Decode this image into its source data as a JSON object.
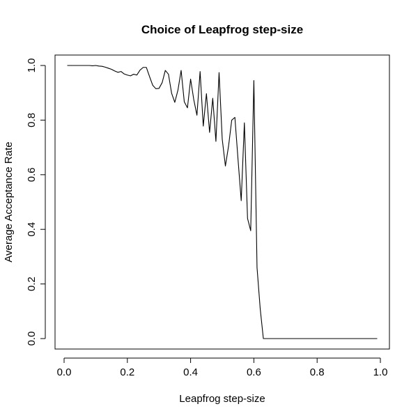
{
  "chart_data": {
    "type": "line",
    "title": "Choice of Leapfrog step-size",
    "xlabel": "Leapfrog step-size",
    "ylabel": "Average Acceptance Rate",
    "xlim": [
      0.01,
      0.99
    ],
    "ylim": [
      0.0,
      1.0
    ],
    "xticks": [
      0.0,
      0.2,
      0.4,
      0.6,
      0.8,
      1.0
    ],
    "xtick_labels": [
      "0.0",
      "0.2",
      "0.4",
      "0.6",
      "0.8",
      "1.0"
    ],
    "yticks": [
      0.0,
      0.2,
      0.4,
      0.6,
      0.8,
      1.0
    ],
    "ytick_labels": [
      "0.0",
      "0.2",
      "0.4",
      "0.6",
      "0.8",
      "1.0"
    ],
    "grid": false,
    "line_color": "#000000",
    "series": [
      {
        "x": [
          0.01,
          0.02,
          0.03,
          0.04,
          0.05,
          0.06,
          0.07,
          0.08,
          0.09,
          0.1,
          0.11,
          0.12,
          0.13,
          0.14,
          0.15,
          0.16,
          0.17,
          0.18,
          0.19,
          0.2,
          0.21,
          0.22,
          0.23,
          0.24,
          0.25,
          0.26,
          0.27,
          0.28,
          0.29,
          0.3,
          0.31,
          0.32,
          0.33,
          0.34,
          0.35,
          0.36,
          0.37,
          0.38,
          0.39,
          0.4,
          0.41,
          0.42,
          0.43,
          0.44,
          0.45,
          0.46,
          0.47,
          0.48,
          0.49,
          0.5,
          0.51,
          0.52,
          0.53,
          0.54,
          0.55,
          0.56,
          0.57,
          0.58,
          0.59,
          0.6,
          0.61,
          0.62,
          0.63,
          0.64,
          0.65,
          0.99
        ],
        "y": [
          1.0,
          1.0,
          1.0,
          1.0,
          1.0,
          1.0,
          1.0,
          1.0,
          0.999,
          1.0,
          0.998,
          0.997,
          0.994,
          0.99,
          0.986,
          0.98,
          0.975,
          0.978,
          0.969,
          0.965,
          0.962,
          0.968,
          0.965,
          0.983,
          0.993,
          0.993,
          0.96,
          0.928,
          0.915,
          0.916,
          0.937,
          0.982,
          0.968,
          0.898,
          0.865,
          0.91,
          0.982,
          0.867,
          0.845,
          0.95,
          0.875,
          0.818,
          0.978,
          0.778,
          0.897,
          0.755,
          0.88,
          0.722,
          0.974,
          0.73,
          0.632,
          0.705,
          0.8,
          0.81,
          0.655,
          0.505,
          0.79,
          0.44,
          0.395,
          0.945,
          0.26,
          0.11,
          0.0,
          0.0,
          0.0,
          0.0
        ]
      }
    ]
  }
}
